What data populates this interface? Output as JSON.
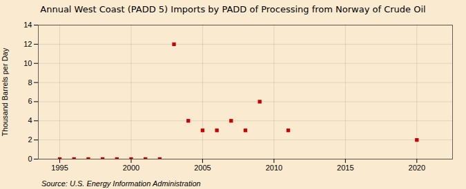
{
  "chart_data": {
    "type": "scatter",
    "title": "Annual West Coast (PADD 5) Imports by PADD of Processing from Norway of Crude Oil",
    "ylabel": "Thousand Barrels per Day",
    "source": "Source: U.S. Energy Information Administration",
    "x": [
      1995,
      1996,
      1997,
      1998,
      1999,
      2000,
      2001,
      2002,
      2003,
      2004,
      2005,
      2006,
      2007,
      2008,
      2009,
      2011,
      2020
    ],
    "values": [
      0,
      0,
      0,
      0,
      0,
      0,
      0,
      0,
      12,
      4,
      3,
      3,
      4,
      3,
      6,
      3,
      2
    ],
    "color": "#cc0000",
    "marker": "square",
    "xlim": [
      1993.5,
      2022.5
    ],
    "ylim": [
      0,
      14
    ],
    "xticks": [
      1995,
      2000,
      2005,
      2010,
      2015,
      2020
    ],
    "yticks": [
      0,
      2,
      4,
      6,
      8,
      10,
      12,
      14
    ],
    "grid": true
  }
}
